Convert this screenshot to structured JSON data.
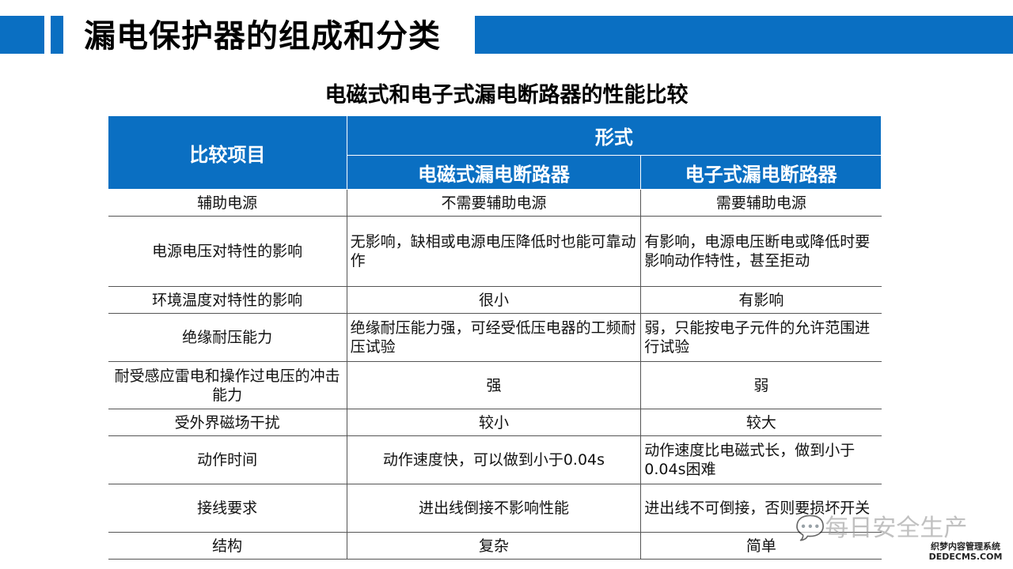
{
  "header": {
    "title": "漏电保护器的组成和分类",
    "accent": "#0a6fc2"
  },
  "subtitle": "电磁式和电子式漏电断路器的性能比较",
  "table": {
    "col0": "比较项目",
    "group": "形式",
    "col1": "电磁式漏电断路器",
    "col2": "电子式漏电断路器",
    "rows": [
      [
        "辅助电源",
        "不需要辅助电源",
        "需要辅助电源"
      ],
      [
        "电源电压对特性的影响",
        "无影响，缺相或电源电压降低时也能可靠动作",
        "有影响，电源电压断电或降低时要影响动作特性，甚至拒动"
      ],
      [
        "环境温度对特性的影响",
        "很小",
        "有影响"
      ],
      [
        "绝缘耐压能力",
        "绝缘耐压能力强，可经受低压电器的工频耐压试验",
        "弱，只能按电子元件的允许范围进行试验"
      ],
      [
        "耐受感应雷电和操作过电压的冲击能力",
        "强",
        "弱"
      ],
      [
        "受外界磁场干扰",
        "较小",
        "较大"
      ],
      [
        "动作时间",
        "动作速度快，可以做到小于0.04s",
        "动作速度比电磁式长，做到小于0.04s困难"
      ],
      [
        "接线要求",
        "进出线倒接不影响性能",
        "进出线不可倒接，否则要损坏开关"
      ],
      [
        "结构",
        "复杂",
        "简单"
      ]
    ]
  },
  "watermark": {
    "text": "每日安全生产",
    "logo": "织梦内容管理系统 DEDECMS.COM"
  }
}
